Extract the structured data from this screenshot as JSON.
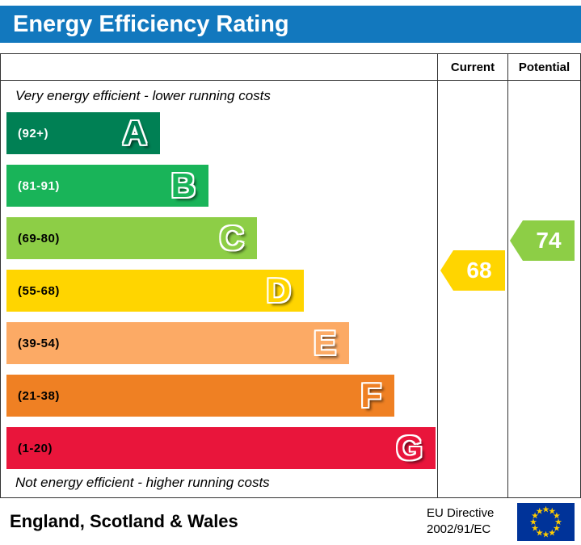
{
  "title": "Energy Efficiency Rating",
  "colors": {
    "header_bg": "#1278be",
    "flag_bg": "#003399",
    "flag_stars": "#ffcc00"
  },
  "columns": {
    "current": "Current",
    "potential": "Potential"
  },
  "captions": {
    "top": "Very energy efficient - lower running costs",
    "bottom": "Not energy efficient - higher running costs"
  },
  "bands": [
    {
      "letter": "A",
      "range": "(92+)",
      "color": "#008054",
      "range_text_color": "#ffffff"
    },
    {
      "letter": "B",
      "range": "(81-91)",
      "color": "#19b459",
      "range_text_color": "#ffffff"
    },
    {
      "letter": "C",
      "range": "(69-80)",
      "color": "#8dce46",
      "range_text_color": "#000000"
    },
    {
      "letter": "D",
      "range": "(55-68)",
      "color": "#ffd500",
      "range_text_color": "#000000"
    },
    {
      "letter": "E",
      "range": "(39-54)",
      "color": "#fcaa65",
      "range_text_color": "#000000"
    },
    {
      "letter": "F",
      "range": "(21-38)",
      "color": "#ef8023",
      "range_text_color": "#000000"
    },
    {
      "letter": "G",
      "range": "(1-20)",
      "color": "#e9153b",
      "range_text_color": "#000000"
    }
  ],
  "ratings": {
    "current": {
      "value": "68",
      "color": "#ffd500",
      "band": "D"
    },
    "potential": {
      "value": "74",
      "color": "#8dce46",
      "band": "C"
    }
  },
  "footer": {
    "region": "England, Scotland & Wales",
    "directive_line1": "EU Directive",
    "directive_line2": "2002/91/EC"
  },
  "chart_data": {
    "type": "bar",
    "title": "Energy Efficiency Rating",
    "categories": [
      "A",
      "B",
      "C",
      "D",
      "E",
      "F",
      "G"
    ],
    "band_ranges": [
      "92+",
      "81-91",
      "69-80",
      "55-68",
      "39-54",
      "21-38",
      "1-20"
    ],
    "band_colors": [
      "#008054",
      "#19b459",
      "#8dce46",
      "#ffd500",
      "#fcaa65",
      "#ef8023",
      "#e9153b"
    ],
    "bar_relative_widths": [
      0.36,
      0.47,
      0.58,
      0.69,
      0.8,
      0.9,
      1.0
    ],
    "top_caption": "Very energy efficient - lower running costs",
    "bottom_caption": "Not energy efficient - higher running costs",
    "markers": [
      {
        "name": "Current",
        "value": 68,
        "band": "D",
        "color": "#ffd500"
      },
      {
        "name": "Potential",
        "value": 74,
        "band": "C",
        "color": "#8dce46"
      }
    ],
    "region_note": "England, Scotland & Wales",
    "directive": "EU Directive 2002/91/EC",
    "legend_position": "none",
    "grid": false
  }
}
